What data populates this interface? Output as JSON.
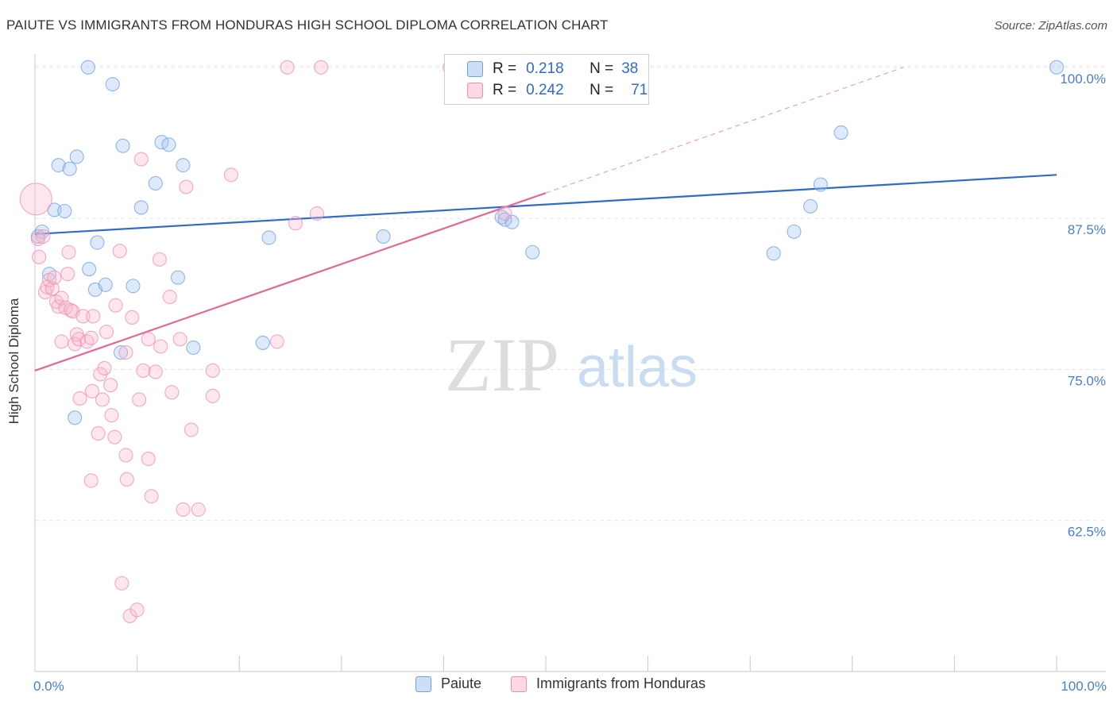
{
  "header": {
    "title": "PAIUTE VS IMMIGRANTS FROM HONDURAS HIGH SCHOOL DIPLOMA CORRELATION CHART",
    "source": "Source: ZipAtlas.com"
  },
  "watermark": {
    "zip": "ZIP",
    "atlas": "atlas"
  },
  "legend": {
    "rows": [
      {
        "r_label": "R =",
        "r_value": "0.218",
        "n_label": "N =",
        "n_value": "38",
        "color": "#6fa2e0"
      },
      {
        "r_label": "R =",
        "r_value": "0.242",
        "n_label": "N =",
        "n_value": "71",
        "color": "#f08fb0"
      }
    ]
  },
  "chart_data": {
    "type": "scatter",
    "title": "PAIUTE VS IMMIGRANTS FROM HONDURAS HIGH SCHOOL DIPLOMA CORRELATION CHART",
    "xlabel": "",
    "ylabel": "High School Diploma",
    "xlim": [
      0,
      100
    ],
    "ylim": [
      50,
      101.5
    ],
    "x_tick_labels": [
      "0.0%",
      "100.0%"
    ],
    "y_tick_labels": [
      "100.0%",
      "87.5%",
      "75.0%",
      "62.5%"
    ],
    "y_tick_values": [
      100,
      87.5,
      75,
      62.5
    ],
    "grid": true,
    "series": [
      {
        "name": "Paiute",
        "color": "#6fa2e0",
        "fill": "rgba(160,196,240,0.35)",
        "trend": {
          "x": [
            0,
            100
          ],
          "y": [
            86.2,
            91.1
          ],
          "style": "solid"
        },
        "points": [
          {
            "x": 0.3,
            "y": 86.0
          },
          {
            "x": 0.7,
            "y": 86.4
          },
          {
            "x": 1.4,
            "y": 82.9
          },
          {
            "x": 1.9,
            "y": 88.2
          },
          {
            "x": 2.3,
            "y": 91.9
          },
          {
            "x": 2.9,
            "y": 88.1
          },
          {
            "x": 3.4,
            "y": 91.6
          },
          {
            "x": 3.9,
            "y": 71.0
          },
          {
            "x": 4.1,
            "y": 92.6
          },
          {
            "x": 5.2,
            "y": 100.0
          },
          {
            "x": 5.3,
            "y": 83.3
          },
          {
            "x": 5.9,
            "y": 81.6
          },
          {
            "x": 6.1,
            "y": 85.5
          },
          {
            "x": 6.9,
            "y": 82.0
          },
          {
            "x": 7.6,
            "y": 98.6
          },
          {
            "x": 8.4,
            "y": 76.4
          },
          {
            "x": 8.6,
            "y": 93.5
          },
          {
            "x": 9.6,
            "y": 81.9
          },
          {
            "x": 10.4,
            "y": 88.4
          },
          {
            "x": 11.8,
            "y": 90.4
          },
          {
            "x": 12.4,
            "y": 93.8
          },
          {
            "x": 13.1,
            "y": 93.6
          },
          {
            "x": 14.0,
            "y": 82.6
          },
          {
            "x": 14.5,
            "y": 91.9
          },
          {
            "x": 15.5,
            "y": 76.8
          },
          {
            "x": 22.3,
            "y": 77.2
          },
          {
            "x": 22.9,
            "y": 85.9
          },
          {
            "x": 34.1,
            "y": 86.0
          },
          {
            "x": 45.7,
            "y": 87.6
          },
          {
            "x": 46.0,
            "y": 87.4
          },
          {
            "x": 46.7,
            "y": 87.2
          },
          {
            "x": 48.7,
            "y": 84.7
          },
          {
            "x": 72.3,
            "y": 84.6
          },
          {
            "x": 74.3,
            "y": 86.4
          },
          {
            "x": 75.9,
            "y": 88.5
          },
          {
            "x": 76.9,
            "y": 90.3
          },
          {
            "x": 78.9,
            "y": 94.6
          },
          {
            "x": 100.0,
            "y": 100.0
          }
        ]
      },
      {
        "name": "Immigrants from Honduras",
        "color": "#f08fb0",
        "fill": "rgba(248,184,204,0.35)",
        "trend": {
          "x": [
            0,
            50
          ],
          "y": [
            74.9,
            89.6
          ],
          "style": "solid",
          "extension": {
            "x": [
              50,
              85
            ],
            "y": [
              89.6,
              100.0
            ],
            "style": "dashed"
          }
        },
        "points": [
          {
            "x": 0.1,
            "y": 89.1,
            "big": true
          },
          {
            "x": 0.3,
            "y": 85.8
          },
          {
            "x": 0.4,
            "y": 84.3
          },
          {
            "x": 0.8,
            "y": 86.0
          },
          {
            "x": 1.0,
            "y": 81.4
          },
          {
            "x": 1.2,
            "y": 81.8
          },
          {
            "x": 1.4,
            "y": 82.4
          },
          {
            "x": 1.7,
            "y": 81.7
          },
          {
            "x": 1.9,
            "y": 82.6
          },
          {
            "x": 2.1,
            "y": 80.6
          },
          {
            "x": 2.3,
            "y": 80.2
          },
          {
            "x": 2.6,
            "y": 80.9
          },
          {
            "x": 2.6,
            "y": 77.3
          },
          {
            "x": 3.0,
            "y": 80.1
          },
          {
            "x": 3.2,
            "y": 82.9
          },
          {
            "x": 3.3,
            "y": 84.7
          },
          {
            "x": 3.5,
            "y": 79.9
          },
          {
            "x": 3.7,
            "y": 79.8
          },
          {
            "x": 3.9,
            "y": 77.1
          },
          {
            "x": 4.1,
            "y": 77.9
          },
          {
            "x": 4.3,
            "y": 77.5
          },
          {
            "x": 4.4,
            "y": 72.6
          },
          {
            "x": 4.7,
            "y": 79.4
          },
          {
            "x": 5.1,
            "y": 77.3
          },
          {
            "x": 5.5,
            "y": 65.8
          },
          {
            "x": 5.5,
            "y": 77.6
          },
          {
            "x": 5.7,
            "y": 79.4
          },
          {
            "x": 5.6,
            "y": 73.2
          },
          {
            "x": 6.2,
            "y": 69.7
          },
          {
            "x": 6.4,
            "y": 74.6
          },
          {
            "x": 6.6,
            "y": 72.5
          },
          {
            "x": 6.8,
            "y": 75.1
          },
          {
            "x": 7.0,
            "y": 78.1
          },
          {
            "x": 7.4,
            "y": 73.7
          },
          {
            "x": 7.5,
            "y": 71.2
          },
          {
            "x": 7.8,
            "y": 69.4
          },
          {
            "x": 7.9,
            "y": 80.3
          },
          {
            "x": 8.3,
            "y": 84.8
          },
          {
            "x": 8.5,
            "y": 57.3
          },
          {
            "x": 8.9,
            "y": 76.4
          },
          {
            "x": 8.9,
            "y": 67.9
          },
          {
            "x": 9.0,
            "y": 65.9
          },
          {
            "x": 9.3,
            "y": 54.6
          },
          {
            "x": 9.5,
            "y": 79.3
          },
          {
            "x": 10.0,
            "y": 55.1
          },
          {
            "x": 10.2,
            "y": 72.5
          },
          {
            "x": 10.4,
            "y": 92.4
          },
          {
            "x": 10.6,
            "y": 74.9
          },
          {
            "x": 11.1,
            "y": 67.6
          },
          {
            "x": 11.1,
            "y": 77.5
          },
          {
            "x": 11.4,
            "y": 64.5
          },
          {
            "x": 11.8,
            "y": 74.8
          },
          {
            "x": 12.2,
            "y": 84.1
          },
          {
            "x": 12.3,
            "y": 76.9
          },
          {
            "x": 13.2,
            "y": 81.0
          },
          {
            "x": 13.4,
            "y": 73.1
          },
          {
            "x": 14.2,
            "y": 77.5
          },
          {
            "x": 14.5,
            "y": 63.4
          },
          {
            "x": 14.8,
            "y": 90.1
          },
          {
            "x": 15.3,
            "y": 70.0
          },
          {
            "x": 16.0,
            "y": 63.4
          },
          {
            "x": 17.4,
            "y": 72.8
          },
          {
            "x": 17.4,
            "y": 74.9
          },
          {
            "x": 19.2,
            "y": 91.1
          },
          {
            "x": 23.7,
            "y": 77.3
          },
          {
            "x": 24.7,
            "y": 100.0
          },
          {
            "x": 25.5,
            "y": 87.1
          },
          {
            "x": 27.6,
            "y": 87.9
          },
          {
            "x": 28.0,
            "y": 100.0
          },
          {
            "x": 40.6,
            "y": 100.0
          },
          {
            "x": 46.0,
            "y": 87.9
          }
        ]
      }
    ]
  },
  "bottom_legend": {
    "items": [
      {
        "label": "Paiute",
        "color": "#6fa2e0"
      },
      {
        "label": "Immigrants from Honduras",
        "color": "#f08fb0"
      }
    ]
  }
}
